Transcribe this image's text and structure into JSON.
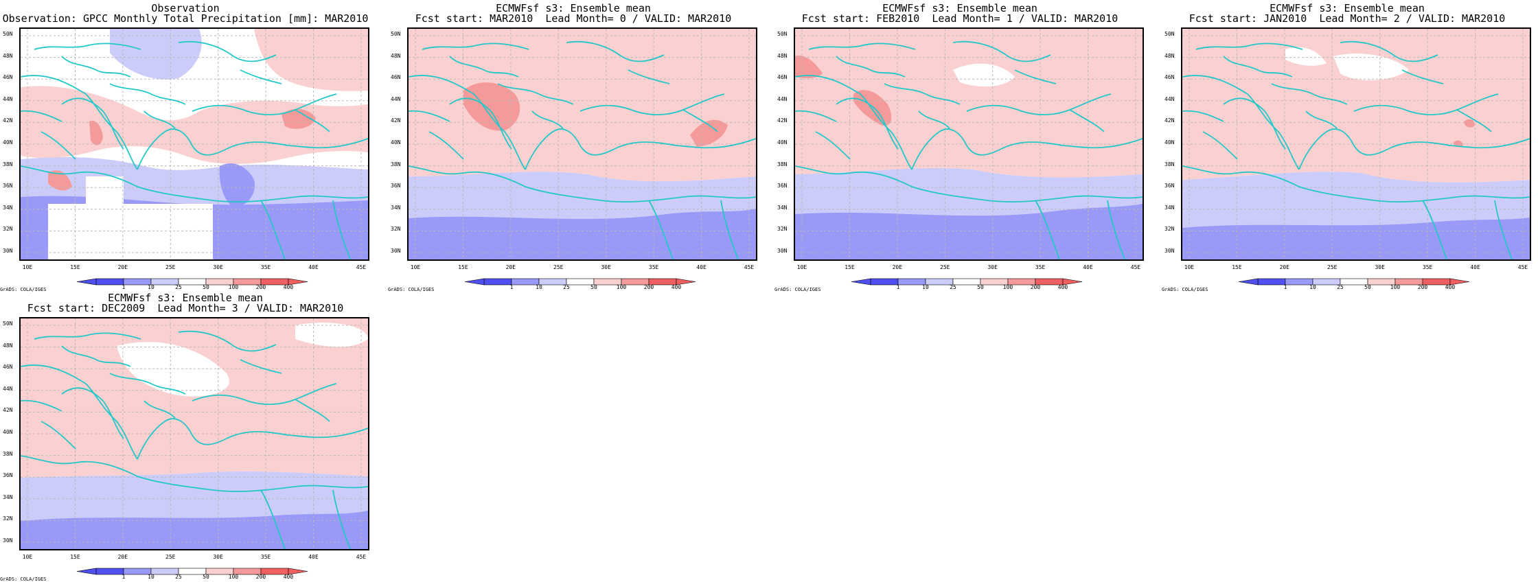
{
  "panels": [
    {
      "title1": "Observation",
      "title2": "Observation: GPCC Monthly Total Precipitation [mm]: MAR2010",
      "variant": "obs"
    },
    {
      "title1": "ECMWFsf s3: Ensemble mean",
      "title2": "Fcst start: MAR2010  Lead Month= 0 / VALID: MAR2010",
      "variant": "l0"
    },
    {
      "title1": "ECMWFsf s3: Ensemble mean",
      "title2": "Fcst start: FEB2010  Lead Month= 1 / VALID: MAR2010",
      "variant": "l1"
    },
    {
      "title1": "ECMWFsf s3: Ensemble mean",
      "title2": "Fcst start: JAN2010  Lead Month= 2 / VALID: MAR2010",
      "variant": "l2"
    },
    {
      "title1": "ECMWFsf s3: Ensemble mean",
      "title2": "Fcst start: DEC2009  Lead Month= 3 / VALID: MAR2010",
      "variant": "l3"
    }
  ],
  "y_ticks": [
    "50N",
    "48N",
    "46N",
    "44N",
    "42N",
    "40N",
    "38N",
    "36N",
    "34N",
    "32N",
    "30N"
  ],
  "x_ticks": [
    "10E",
    "15E",
    "20E",
    "25E",
    "30E",
    "35E",
    "40E",
    "45E"
  ],
  "colorbar": {
    "labels": [
      "1",
      "10",
      "25",
      "50",
      "100",
      "200",
      "400"
    ],
    "colors": [
      "#5050f0",
      "#9999f7",
      "#ccccfa",
      "#ffffff",
      "#fbd0d0",
      "#f59a9a",
      "#f06060"
    ]
  },
  "grads_credit": "GrADS: COLA/IGES",
  "colors": {
    "coast": "#22c8c8",
    "grid": "#b8b8b8"
  }
}
